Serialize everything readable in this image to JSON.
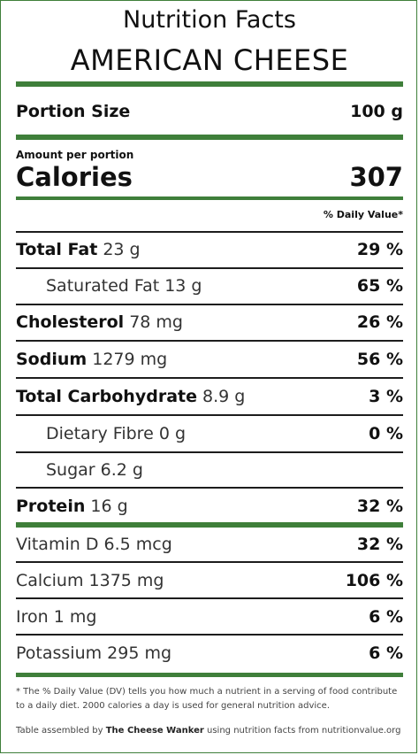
{
  "header": {
    "title": "Nutrition Facts",
    "product": "AMERICAN CHEESE"
  },
  "portion": {
    "label": "Portion Size",
    "value": "100 g"
  },
  "calories": {
    "amount_label": "Amount per portion",
    "label": "Calories",
    "value": "307"
  },
  "dv_header": "% Daily Value*",
  "nutrients": [
    {
      "name": "Total Fat",
      "amount": "23 g",
      "dv": "29 %"
    },
    {
      "name": "Saturated Fat",
      "amount": "13 g",
      "dv": "65 %"
    },
    {
      "name": "Cholesterol",
      "amount": "78 mg",
      "dv": "26 %"
    },
    {
      "name": "Sodium",
      "amount": "1279 mg",
      "dv": "56 %"
    },
    {
      "name": "Total Carbohydrate",
      "amount": "8.9 g",
      "dv": "3 %"
    },
    {
      "name": "Dietary Fibre",
      "amount": "0 g",
      "dv": "0 %"
    },
    {
      "name": "Sugar",
      "amount": "6.2 g",
      "dv": ""
    },
    {
      "name": "Protein",
      "amount": "16 g",
      "dv": "32 %"
    }
  ],
  "vitamins": [
    {
      "name": "Vitamin D",
      "amount": "6.5 mcg",
      "dv": "32 %"
    },
    {
      "name": "Calcium",
      "amount": "1375 mg",
      "dv": "106 %"
    },
    {
      "name": "Iron",
      "amount": "1 mg",
      "dv": "6 %"
    },
    {
      "name": "Potassium",
      "amount": "295 mg",
      "dv": "6 %"
    }
  ],
  "footnote": "* The % Daily Value (DV) tells you how much a nutrient in a serving of food contribute to a daily diet. 2000 calories a day is used for general nutrition advice.",
  "credit": {
    "prefix": "Table assembled by ",
    "author": "The Cheese Wanker",
    "suffix": " using nutrition facts from nutritionvalue.org"
  },
  "colors": {
    "accent": "#3f7f3a",
    "text": "#111111"
  }
}
